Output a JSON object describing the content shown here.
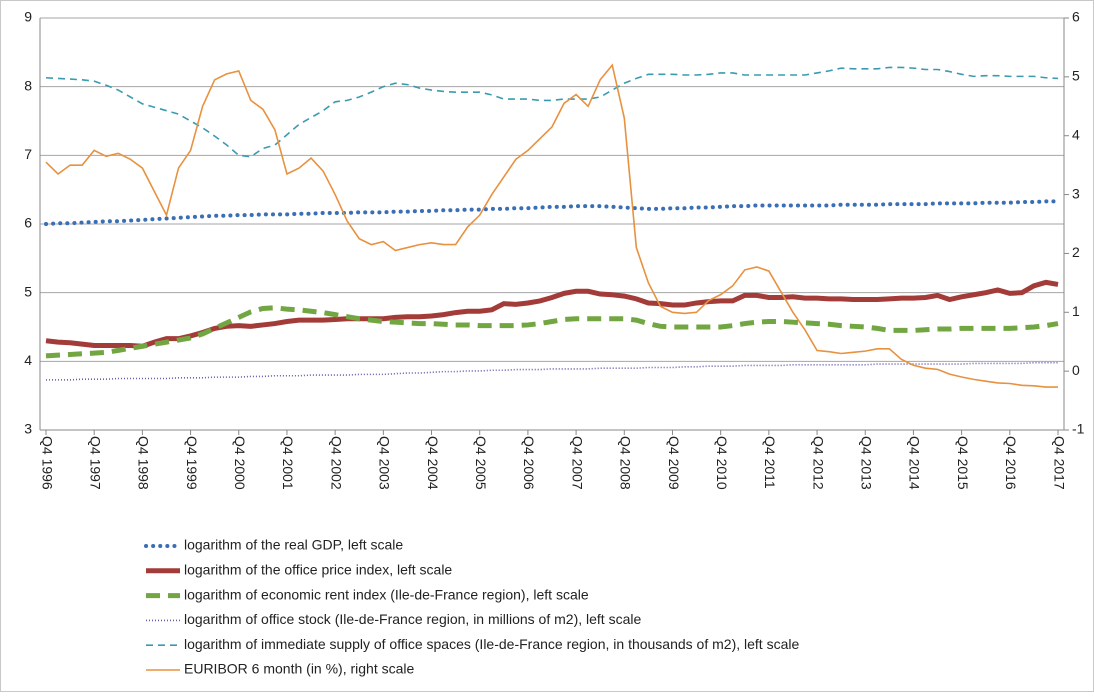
{
  "chart_data": {
    "type": "line",
    "categories": [
      "Q4 1996",
      null,
      null,
      null,
      "Q4 1997",
      null,
      null,
      null,
      "Q4 1998",
      null,
      null,
      null,
      "Q4 1999",
      null,
      null,
      null,
      "Q4 2000",
      null,
      null,
      null,
      "Q4 2001",
      null,
      null,
      null,
      "Q4 2002",
      null,
      null,
      null,
      "Q4 2003",
      null,
      null,
      null,
      "Q4 2004",
      null,
      null,
      null,
      "Q4 2005",
      null,
      null,
      null,
      "Q4 2006",
      null,
      null,
      null,
      "Q4 2007",
      null,
      null,
      null,
      "Q4 2008",
      null,
      null,
      null,
      "Q4 2009",
      null,
      null,
      null,
      "Q4 2010",
      null,
      null,
      null,
      "Q4 2011",
      null,
      null,
      null,
      "Q4 2012",
      null,
      null,
      null,
      "Q4 2013",
      null,
      null,
      null,
      "Q4 2014",
      null,
      null,
      null,
      "Q4 2015",
      null,
      null,
      null,
      "Q4 2016",
      null,
      null,
      null,
      "Q4 2017"
    ],
    "ylim": [
      3,
      9
    ],
    "yticks": [
      3,
      4,
      5,
      6,
      7,
      8,
      9
    ],
    "y2lim": [
      -1,
      6
    ],
    "y2ticks": [
      -1,
      0,
      1,
      2,
      3,
      4,
      5,
      6
    ],
    "grid": true,
    "series": [
      {
        "name": "logarithm of the real GDP, left scale",
        "color": "#3a6eb5",
        "style": "dotted",
        "weight": "heavy",
        "values": [
          6.0,
          6.01,
          6.01,
          6.02,
          6.03,
          6.04,
          6.04,
          6.05,
          6.06,
          6.07,
          6.08,
          6.09,
          6.1,
          6.11,
          6.12,
          6.12,
          6.13,
          6.13,
          6.14,
          6.14,
          6.14,
          6.15,
          6.15,
          6.16,
          6.16,
          6.16,
          6.17,
          6.17,
          6.17,
          6.18,
          6.18,
          6.19,
          6.19,
          6.2,
          6.2,
          6.21,
          6.21,
          6.22,
          6.22,
          6.23,
          6.23,
          6.24,
          6.25,
          6.25,
          6.26,
          6.26,
          6.26,
          6.25,
          6.24,
          6.23,
          6.22,
          6.22,
          6.23,
          6.23,
          6.24,
          6.24,
          6.25,
          6.26,
          6.26,
          6.27,
          6.27,
          6.27,
          6.27,
          6.27,
          6.27,
          6.27,
          6.28,
          6.28,
          6.28,
          6.28,
          6.29,
          6.29,
          6.29,
          6.29,
          6.3,
          6.3,
          6.3,
          6.3,
          6.31,
          6.31,
          6.31,
          6.32,
          6.32,
          6.33,
          6.33
        ]
      },
      {
        "name": "logarithm of the office price index, left scale",
        "color": "#a33b39",
        "style": "solid",
        "weight": "heavy",
        "values": [
          4.3,
          4.28,
          4.27,
          4.25,
          4.23,
          4.23,
          4.23,
          4.23,
          4.22,
          4.28,
          4.33,
          4.33,
          4.37,
          4.42,
          4.48,
          4.51,
          4.52,
          4.51,
          4.53,
          4.55,
          4.58,
          4.6,
          4.6,
          4.6,
          4.61,
          4.62,
          4.62,
          4.62,
          4.62,
          4.64,
          4.65,
          4.65,
          4.66,
          4.68,
          4.71,
          4.73,
          4.73,
          4.75,
          4.84,
          4.83,
          4.85,
          4.88,
          4.93,
          4.99,
          5.02,
          5.02,
          4.98,
          4.97,
          4.95,
          4.91,
          4.85,
          4.84,
          4.82,
          4.82,
          4.85,
          4.87,
          4.88,
          4.88,
          4.96,
          4.96,
          4.93,
          4.93,
          4.94,
          4.92,
          4.92,
          4.91,
          4.91,
          4.9,
          4.9,
          4.9,
          4.91,
          4.92,
          4.92,
          4.93,
          4.96,
          4.9,
          4.94,
          4.97,
          5.0,
          5.04,
          4.99,
          5.0,
          5.1,
          5.15,
          5.12
        ]
      },
      {
        "name": "logarithm of economic rent index (Ile-de-France region), left scale",
        "color": "#72a642",
        "style": "dashed",
        "weight": "heavy",
        "values": [
          4.08,
          4.09,
          4.1,
          4.11,
          4.12,
          4.13,
          4.16,
          4.19,
          4.22,
          4.25,
          4.28,
          4.31,
          4.34,
          4.4,
          4.48,
          4.56,
          4.64,
          4.72,
          4.77,
          4.78,
          4.76,
          4.75,
          4.73,
          4.71,
          4.68,
          4.65,
          4.62,
          4.6,
          4.58,
          4.57,
          4.56,
          4.55,
          4.55,
          4.54,
          4.53,
          4.53,
          4.52,
          4.52,
          4.52,
          4.52,
          4.53,
          4.55,
          4.58,
          4.61,
          4.62,
          4.62,
          4.62,
          4.62,
          4.62,
          4.6,
          4.55,
          4.51,
          4.5,
          4.5,
          4.5,
          4.5,
          4.5,
          4.52,
          4.55,
          4.57,
          4.58,
          4.58,
          4.57,
          4.56,
          4.55,
          4.54,
          4.52,
          4.51,
          4.5,
          4.48,
          4.45,
          4.45,
          4.45,
          4.46,
          4.47,
          4.47,
          4.48,
          4.48,
          4.48,
          4.48,
          4.48,
          4.49,
          4.5,
          4.52,
          4.55
        ]
      },
      {
        "name": "logarithm of office stock (Ile-de-France region, in millions of m2), left scale",
        "color": "#6a5aa8",
        "style": "dotted",
        "weight": "light",
        "values": [
          3.73,
          3.73,
          3.73,
          3.74,
          3.74,
          3.74,
          3.75,
          3.75,
          3.75,
          3.75,
          3.75,
          3.76,
          3.76,
          3.76,
          3.77,
          3.77,
          3.77,
          3.78,
          3.78,
          3.79,
          3.79,
          3.79,
          3.8,
          3.8,
          3.8,
          3.8,
          3.81,
          3.81,
          3.81,
          3.82,
          3.83,
          3.83,
          3.84,
          3.85,
          3.85,
          3.86,
          3.86,
          3.87,
          3.87,
          3.88,
          3.88,
          3.88,
          3.89,
          3.89,
          3.89,
          3.89,
          3.9,
          3.9,
          3.9,
          3.9,
          3.91,
          3.91,
          3.91,
          3.92,
          3.92,
          3.93,
          3.93,
          3.93,
          3.94,
          3.94,
          3.94,
          3.94,
          3.95,
          3.95,
          3.95,
          3.95,
          3.95,
          3.95,
          3.95,
          3.96,
          3.96,
          3.96,
          3.96,
          3.96,
          3.96,
          3.96,
          3.96,
          3.97,
          3.97,
          3.97,
          3.97,
          3.97,
          3.98,
          3.98,
          3.98
        ]
      },
      {
        "name": "logarithm of immediate supply of office spaces (Ile-de-France region, in thousands of m2), left scale",
        "color": "#3a9bb0",
        "style": "dashed",
        "weight": "light",
        "values": [
          8.13,
          8.12,
          8.11,
          8.1,
          8.08,
          8.02,
          7.95,
          7.85,
          7.75,
          7.7,
          7.65,
          7.6,
          7.5,
          7.4,
          7.28,
          7.15,
          7.0,
          6.98,
          7.1,
          7.15,
          7.3,
          7.45,
          7.55,
          7.65,
          7.78,
          7.8,
          7.85,
          7.92,
          8.0,
          8.05,
          8.03,
          7.98,
          7.95,
          7.93,
          7.92,
          7.92,
          7.92,
          7.88,
          7.82,
          7.82,
          7.82,
          7.8,
          7.8,
          7.82,
          7.82,
          7.82,
          7.85,
          7.95,
          8.05,
          8.12,
          8.18,
          8.18,
          8.18,
          8.17,
          8.17,
          8.18,
          8.2,
          8.2,
          8.17,
          8.17,
          8.17,
          8.17,
          8.17,
          8.17,
          8.2,
          8.23,
          8.27,
          8.26,
          8.26,
          8.26,
          8.28,
          8.28,
          8.27,
          8.25,
          8.25,
          8.22,
          8.18,
          8.15,
          8.16,
          8.16,
          8.15,
          8.15,
          8.15,
          8.13,
          8.12
        ]
      },
      {
        "name": "EURIBOR 6 month (in %), right scale",
        "color": "#e8913f",
        "style": "solid",
        "weight": "light",
        "axis": "y2",
        "values": [
          3.55,
          3.35,
          3.5,
          3.5,
          3.75,
          3.65,
          3.7,
          3.6,
          3.45,
          3.05,
          2.65,
          3.45,
          3.75,
          4.5,
          4.95,
          5.05,
          5.1,
          4.6,
          4.45,
          4.1,
          3.35,
          3.45,
          3.62,
          3.4,
          3.0,
          2.55,
          2.25,
          2.15,
          2.2,
          2.05,
          2.1,
          2.15,
          2.18,
          2.15,
          2.15,
          2.45,
          2.65,
          3.0,
          3.3,
          3.6,
          3.75,
          3.95,
          4.15,
          4.55,
          4.7,
          4.5,
          4.95,
          5.2,
          4.3,
          2.1,
          1.5,
          1.1,
          1.0,
          0.98,
          1.0,
          1.2,
          1.3,
          1.45,
          1.72,
          1.77,
          1.7,
          1.35,
          1.0,
          0.7,
          0.35,
          0.33,
          0.3,
          0.32,
          0.34,
          0.38,
          0.38,
          0.2,
          0.1,
          0.05,
          0.03,
          -0.05,
          -0.1,
          -0.14,
          -0.17,
          -0.2,
          -0.21,
          -0.24,
          -0.25,
          -0.27,
          -0.27
        ]
      }
    ]
  }
}
